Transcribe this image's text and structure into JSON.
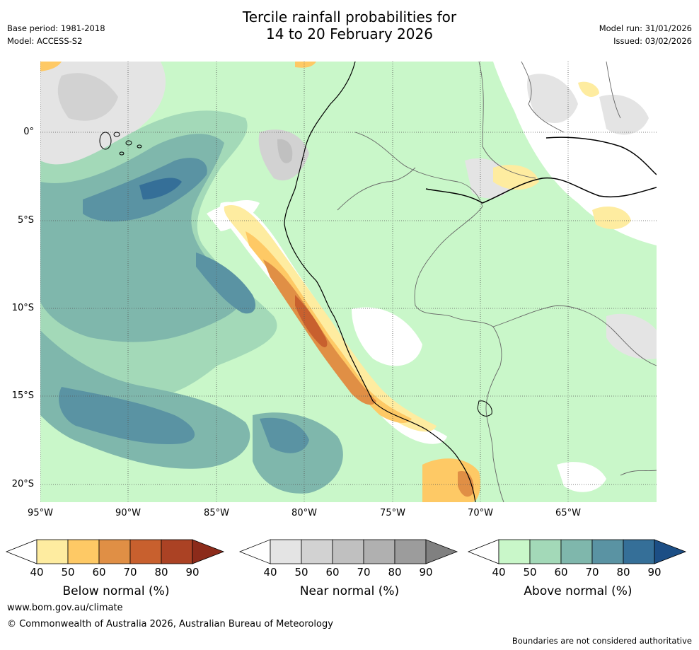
{
  "title_line1": "Tercile rainfall probabilities for",
  "title_line2": "14 to 20 February 2026",
  "base_period": "Base period: 1981-2018",
  "model": "Model: ACCESS-S2",
  "model_run": "Model run: 31/01/2026",
  "issued": "Issued: 03/02/2026",
  "lat_labels": [
    "0°",
    "5°S",
    "10°S",
    "15°S",
    "20°S"
  ],
  "lon_labels": [
    "95°W",
    "90°W",
    "85°W",
    "80°W",
    "75°W",
    "70°W",
    "65°W"
  ],
  "colorbars": {
    "below": {
      "title": "Below normal (%)",
      "ticks": [
        "40",
        "50",
        "60",
        "70",
        "80",
        "90"
      ],
      "colors": [
        "#ffffff",
        "#feeca0",
        "#fec965",
        "#e08f45",
        "#c8602e",
        "#ab4224",
        "#8c2b1a"
      ]
    },
    "near": {
      "title": "Near normal (%)",
      "ticks": [
        "40",
        "50",
        "60",
        "70",
        "80",
        "90"
      ],
      "colors": [
        "#ffffff",
        "#e4e4e4",
        "#d2d2d2",
        "#c0c0c0",
        "#b0b0b0",
        "#9c9c9c",
        "#808080"
      ]
    },
    "above": {
      "title": "Above normal (%)",
      "ticks": [
        "40",
        "50",
        "60",
        "70",
        "80",
        "90"
      ],
      "colors": [
        "#ffffff",
        "#c9f7c9",
        "#a3d9b8",
        "#7fb7ac",
        "#5a93a3",
        "#356f98",
        "#1c4e85"
      ]
    }
  },
  "website": "www.bom.gov.au/climate",
  "copyright": "© Commonwealth of Australia 2026, Australian Bureau of Meteorology",
  "disclaimer": "Boundaries are not considered authoritative"
}
